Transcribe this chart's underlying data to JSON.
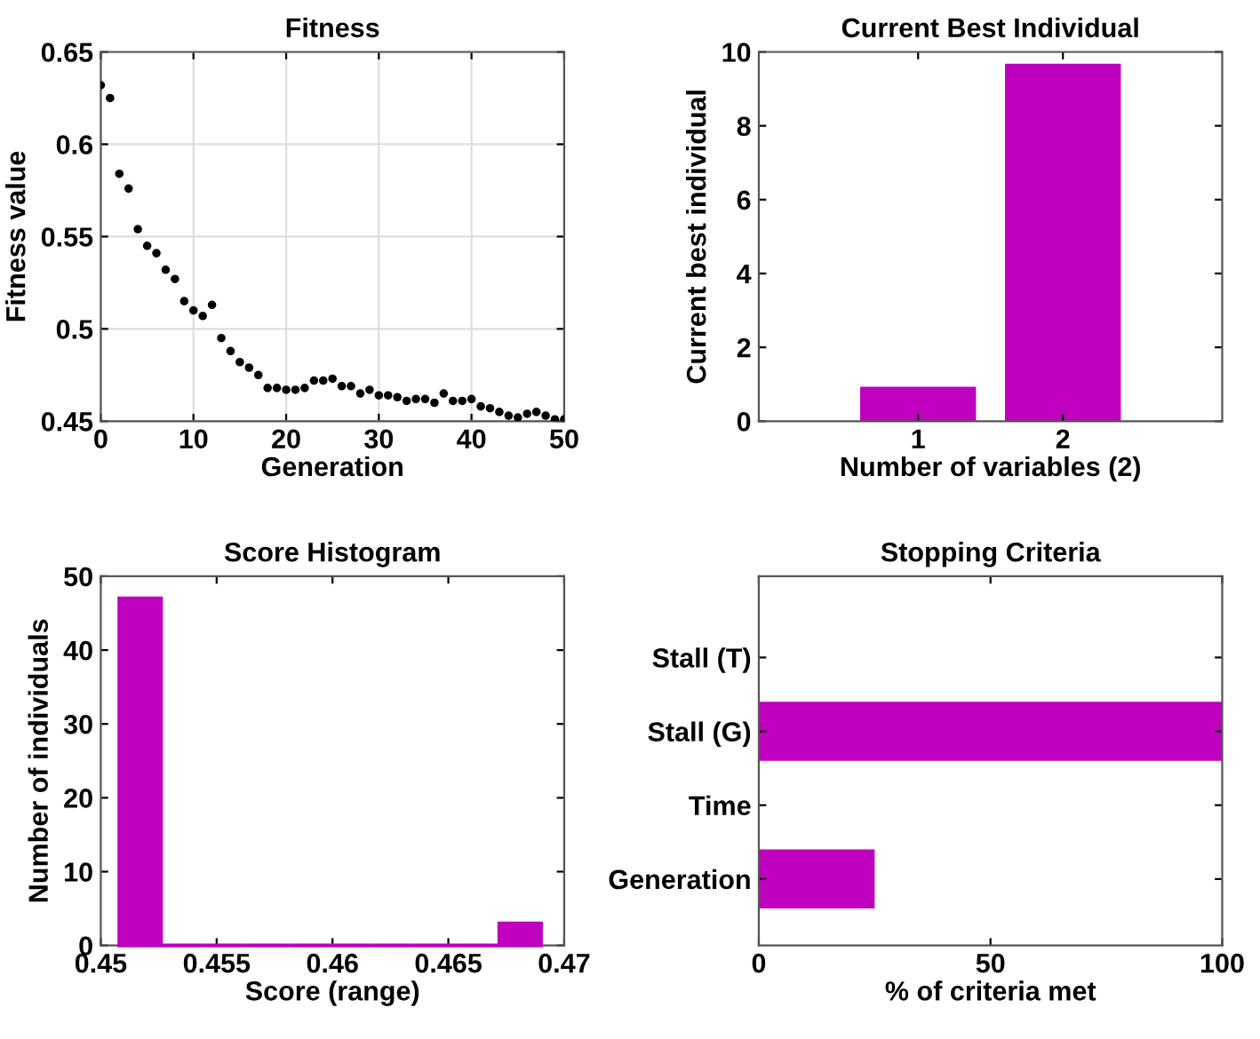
{
  "chart_data": [
    {
      "type": "scatter",
      "title": "Fitness",
      "xlabel": "Generation",
      "ylabel": "Fitness value",
      "grid": true,
      "marker": "circle",
      "color": "#000000",
      "x": [
        0,
        1,
        2,
        3,
        4,
        5,
        6,
        7,
        8,
        9,
        10,
        11,
        12,
        13,
        14,
        15,
        16,
        17,
        18,
        19,
        20,
        21,
        22,
        23,
        24,
        25,
        26,
        27,
        28,
        29,
        30,
        31,
        32,
        33,
        34,
        35,
        36,
        37,
        38,
        39,
        40,
        41,
        42,
        43,
        44,
        45,
        46,
        47,
        48,
        49,
        50
      ],
      "values": [
        0.632,
        0.625,
        0.584,
        0.576,
        0.554,
        0.545,
        0.541,
        0.532,
        0.527,
        0.515,
        0.51,
        0.507,
        0.513,
        0.495,
        0.488,
        0.482,
        0.479,
        0.475,
        0.468,
        0.468,
        0.467,
        0.467,
        0.468,
        0.472,
        0.472,
        0.473,
        0.469,
        0.469,
        0.465,
        0.467,
        0.464,
        0.464,
        0.463,
        0.461,
        0.462,
        0.462,
        0.46,
        0.465,
        0.461,
        0.461,
        0.462,
        0.458,
        0.457,
        0.455,
        0.453,
        0.452,
        0.454,
        0.455,
        0.453,
        0.451,
        0.451
      ],
      "xlim": [
        0,
        50
      ],
      "xticks": [
        0,
        10,
        20,
        30,
        40,
        50
      ],
      "ylim": [
        0.45,
        0.65
      ],
      "yticks": [
        0.45,
        0.5,
        0.55,
        0.6,
        0.65
      ]
    },
    {
      "type": "bar",
      "title": "Current Best Individual",
      "xlabel": "Number of variables (2)",
      "ylabel": "Current best individual",
      "categories": [
        "1",
        "2"
      ],
      "values": [
        0.93,
        9.68
      ],
      "color": "#bf00bf",
      "ylim": [
        0,
        10
      ],
      "yticks": [
        0,
        2,
        4,
        6,
        8,
        10
      ]
    },
    {
      "type": "histogram",
      "title": "Score Histogram",
      "xlabel": "Score (range)",
      "ylabel": "Number of individuals",
      "bins": [
        0.4508,
        0.4526,
        0.4544,
        0.4563,
        0.4581,
        0.4599,
        0.4617,
        0.4635,
        0.4654,
        0.4672,
        0.469
      ],
      "values": [
        47,
        0,
        0,
        0,
        0,
        0,
        0,
        0,
        0,
        3
      ],
      "color": "#bf00bf",
      "xlim": [
        0.45,
        0.47
      ],
      "xticks": [
        0.45,
        0.455,
        0.46,
        0.465,
        0.47
      ],
      "ylim": [
        0,
        50
      ],
      "yticks": [
        0,
        10,
        20,
        30,
        40,
        50
      ]
    },
    {
      "type": "bar",
      "orientation": "horizontal",
      "title": "Stopping Criteria",
      "xlabel": "% of criteria met",
      "categories": [
        "Stall (T)",
        "Stall (G)",
        "Time",
        "Generation"
      ],
      "values": [
        0,
        100,
        0,
        25
      ],
      "color": "#bf00bf",
      "xlim": [
        0,
        100
      ],
      "xticks": [
        0,
        50,
        100
      ]
    }
  ]
}
